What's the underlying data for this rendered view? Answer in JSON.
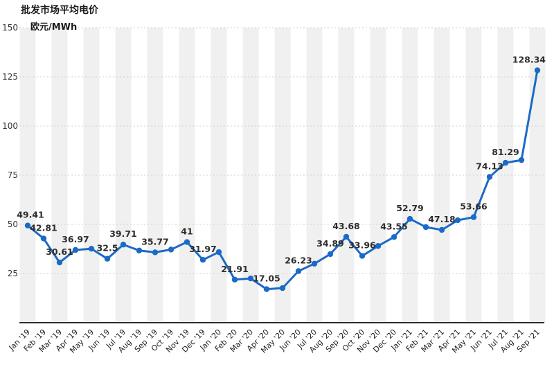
{
  "chart_data": {
    "type": "line",
    "title": "批发市场平均电价",
    "ylabel": "欧元/MWh",
    "xlabel": "",
    "ylim": [
      0,
      150
    ],
    "yticks": [
      25,
      50,
      75,
      100,
      125,
      150
    ],
    "grid": true,
    "legend_position": "none",
    "line_color": "#1b6ac6",
    "point_color": "#1b6ac6",
    "label_color": "#2d2d2d",
    "stripe_color": "#f0f0f0",
    "axis_color": "#2b2b2b",
    "categories": [
      "Jan '19",
      "Feb '19",
      "Mar '19",
      "Apr '19",
      "May '19",
      "Jun '19",
      "Jul '19",
      "Aug '19",
      "Sep '19",
      "Oct '19",
      "Nov '19",
      "Dec '19",
      "Jan '20",
      "Feb '20",
      "Mar '20",
      "Apr '20",
      "May '20",
      "Jun '20",
      "Jul '20",
      "Aug '20",
      "Sep '20",
      "Oct '20",
      "Nov '20",
      "Dec '20",
      "Jan '21",
      "Feb '21",
      "Mar '21",
      "Apr '21",
      "May '21",
      "Jun '21",
      "Jul '21",
      "Aug '21",
      "Sep '21"
    ],
    "values": [
      49.41,
      42.81,
      30.61,
      36.97,
      37.6,
      32.5,
      39.71,
      36.7,
      35.77,
      37.2,
      41,
      31.97,
      35.9,
      21.91,
      22.5,
      17.05,
      17.6,
      26.23,
      30.0,
      34.89,
      43.68,
      33.96,
      39.0,
      43.55,
      52.79,
      48.6,
      47.18,
      52.1,
      53.66,
      74.13,
      81.29,
      82.7,
      128.34
    ],
    "point_labels": [
      "49.41",
      "42.81",
      "30.61",
      "36.97",
      null,
      "32.5",
      "39.71",
      null,
      "35.77",
      null,
      "41",
      "31.97",
      null,
      "21.91",
      null,
      "17.05",
      null,
      "26.23",
      null,
      "34.89",
      "43.68",
      "33.96",
      null,
      "43.55",
      "52.79",
      null,
      "47.18",
      null,
      "53.66",
      "74.13",
      "81.29",
      null,
      "128.34"
    ]
  }
}
